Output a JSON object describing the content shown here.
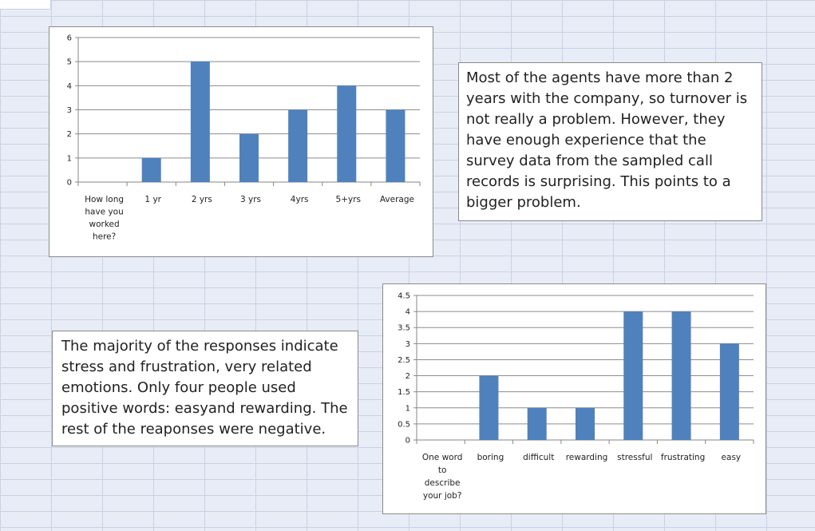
{
  "notes": {
    "tenure_comment": "Most of the agents have more than 2 years with the company, so turnover is not really a problem. However, they have enough experience  that the survey data from the sampled call records is surprising. This points to a bigger problem.",
    "words_comment": "The majority of the responses indicate stress and frustration, very related emotions. Only four people used positive words: easyand rewarding.  The rest of the reaponses were negative."
  },
  "chart_data": [
    {
      "type": "bar",
      "categories": [
        "How long have you worked here?",
        "1 yr",
        "2 yrs",
        "3 yrs",
        "4yrs",
        "5+yrs",
        "Average"
      ],
      "category_lines": [
        [
          "How long",
          "have you",
          "worked",
          "here?"
        ],
        [
          "1 yr"
        ],
        [
          "2 yrs"
        ],
        [
          "3 yrs"
        ],
        [
          "4yrs"
        ],
        [
          "5+yrs"
        ],
        [
          "Average"
        ]
      ],
      "values": [
        0,
        1,
        5,
        2,
        3,
        4,
        3
      ],
      "y_ticks": [
        "0",
        "1",
        "2",
        "3",
        "4",
        "5",
        "6"
      ],
      "ylim": [
        0,
        6
      ],
      "title": "",
      "xlabel": "",
      "ylabel": "",
      "bar_color": "#4f81bd",
      "grid": true,
      "legend": "none"
    },
    {
      "type": "bar",
      "categories": [
        "One word to describe your job?",
        "boring",
        "difficult",
        "rewarding",
        "stressful",
        "frustrating",
        "easy"
      ],
      "category_lines": [
        [
          "One word",
          "to",
          "describe",
          "your job?"
        ],
        [
          "boring"
        ],
        [
          "difficult"
        ],
        [
          "rewarding"
        ],
        [
          "stressful"
        ],
        [
          "frustrating"
        ],
        [
          "easy"
        ]
      ],
      "values": [
        0,
        2,
        1,
        1,
        4,
        4,
        3
      ],
      "y_ticks": [
        "0",
        "0.5",
        "1",
        "1.5",
        "2",
        "2.5",
        "3",
        "3.5",
        "4",
        "4.5"
      ],
      "ylim": [
        0,
        4.5
      ],
      "title": "",
      "xlabel": "",
      "ylabel": "",
      "bar_color": "#4f81bd",
      "grid": true,
      "legend": "none"
    }
  ]
}
